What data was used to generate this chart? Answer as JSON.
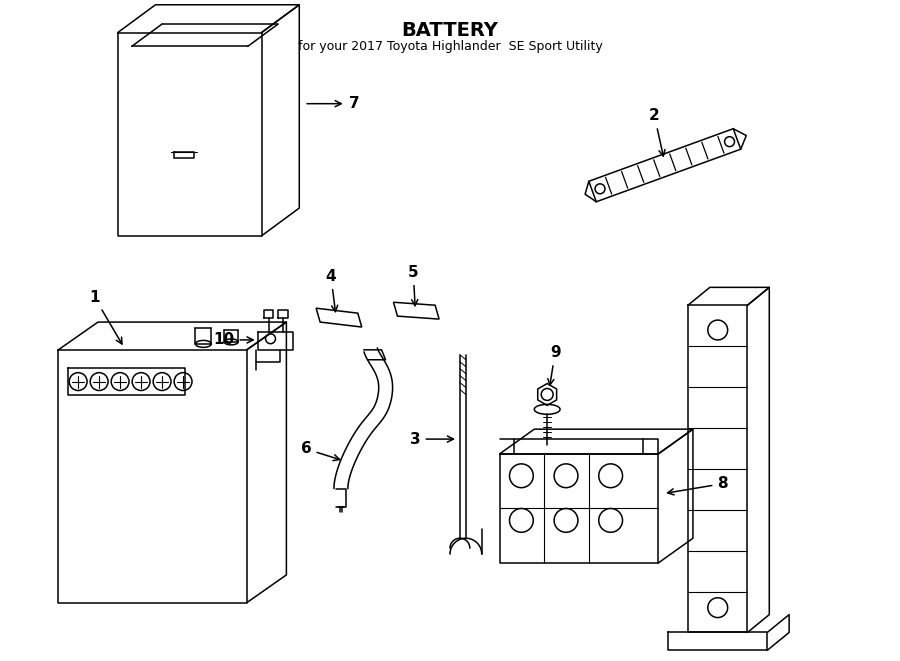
{
  "title": "BATTERY",
  "subtitle": "for your 2017 Toyota Highlander  SE Sport Utility",
  "bg_color": "#ffffff",
  "line_color": "#000000",
  "label_color": "#000000"
}
